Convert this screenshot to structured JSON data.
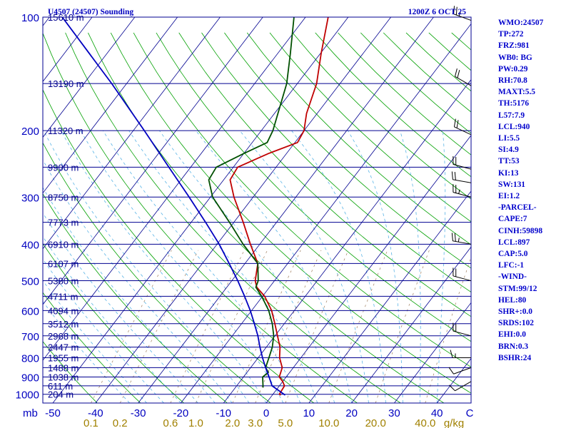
{
  "chart_data": {
    "type": "skew-t-log-p sounding",
    "title_left": "U4507 (24507) Sounding",
    "title_right": "1200Z  6 OCT 25",
    "pressure_axis": {
      "unit_label": "mb",
      "range_mb": [
        100,
        1000
      ],
      "ticks": [
        {
          "p": 100,
          "label": "100"
        },
        {
          "p": 200,
          "label": "200"
        },
        {
          "p": 300,
          "label": "300"
        },
        {
          "p": 400,
          "label": "400"
        },
        {
          "p": 500,
          "label": "500"
        },
        {
          "p": 600,
          "label": "600"
        },
        {
          "p": 700,
          "label": "700"
        },
        {
          "p": 800,
          "label": "800"
        },
        {
          "p": 900,
          "label": "900"
        },
        {
          "p": 1000,
          "label": "1000"
        }
      ]
    },
    "temperature_axis": {
      "unit_label": "C",
      "range_c": [
        -50,
        50
      ],
      "ticks": [
        {
          "t": -50,
          "label": "-50"
        },
        {
          "t": -40,
          "label": "-40"
        },
        {
          "t": -30,
          "label": "-30"
        },
        {
          "t": -20,
          "label": "-20"
        },
        {
          "t": -10,
          "label": "-10"
        },
        {
          "t": 0,
          "label": "0"
        },
        {
          "t": 10,
          "label": "10"
        },
        {
          "t": 20,
          "label": "20"
        },
        {
          "t": 30,
          "label": "30"
        },
        {
          "t": 40,
          "label": "40"
        }
      ]
    },
    "mixing_ratio_axis": {
      "unit_label": "g/kg",
      "labels": [
        "0.1",
        "0.2",
        "0.6",
        "1.0",
        "2.0",
        "3.0",
        "5.0",
        "10.0",
        "20.0",
        "40.0"
      ],
      "values": [
        0.1,
        0.2,
        0.6,
        1.0,
        2.0,
        3.0,
        5.0,
        10.0,
        20.0,
        40.0
      ]
    },
    "height_labels": [
      {
        "p": 100,
        "label": "15610 m"
      },
      {
        "p": 150,
        "label": "13190 m"
      },
      {
        "p": 200,
        "label": "11320 m"
      },
      {
        "p": 250,
        "label": "9900 m"
      },
      {
        "p": 300,
        "label": "8750 m"
      },
      {
        "p": 350,
        "label": "7773 m"
      },
      {
        "p": 400,
        "label": "6910 m"
      },
      {
        "p": 450,
        "label": "6107 m"
      },
      {
        "p": 500,
        "label": "5380 m"
      },
      {
        "p": 550,
        "label": "4711 m"
      },
      {
        "p": 600,
        "label": "4094 m"
      },
      {
        "p": 650,
        "label": "3512 m"
      },
      {
        "p": 700,
        "label": "2968 m"
      },
      {
        "p": 750,
        "label": "2447 m"
      },
      {
        "p": 800,
        "label": "1955 m"
      },
      {
        "p": 850,
        "label": "1488 m"
      },
      {
        "p": 900,
        "label": "1038 m"
      },
      {
        "p": 950,
        "label": "611 m"
      },
      {
        "p": 1000,
        "label": "204 m"
      }
    ],
    "series": [
      {
        "name": "temperature",
        "color": "#c00000",
        "points": [
          {
            "p": 1005,
            "t": 2.0
          },
          {
            "p": 1000,
            "t": 1.5
          },
          {
            "p": 950,
            "t": 1.2
          },
          {
            "p": 925,
            "t": 0.0
          },
          {
            "p": 900,
            "t": -1.6
          },
          {
            "p": 850,
            "t": -2.6
          },
          {
            "p": 800,
            "t": -5.0
          },
          {
            "p": 750,
            "t": -6.8
          },
          {
            "p": 700,
            "t": -9.4
          },
          {
            "p": 650,
            "t": -12.2
          },
          {
            "p": 600,
            "t": -15.3
          },
          {
            "p": 550,
            "t": -19.5
          },
          {
            "p": 520,
            "t": -23.0
          },
          {
            "p": 500,
            "t": -24.5
          },
          {
            "p": 450,
            "t": -27.0
          },
          {
            "p": 400,
            "t": -32.2
          },
          {
            "p": 350,
            "t": -37.8
          },
          {
            "p": 300,
            "t": -44.5
          },
          {
            "p": 270,
            "t": -48.5
          },
          {
            "p": 250,
            "t": -49.0
          },
          {
            "p": 230,
            "t": -44.2
          },
          {
            "p": 215,
            "t": -39.4
          },
          {
            "p": 200,
            "t": -40.0
          },
          {
            "p": 180,
            "t": -42.5
          },
          {
            "p": 150,
            "t": -45.5
          },
          {
            "p": 125,
            "t": -49.8
          },
          {
            "p": 100,
            "t": -54.7
          }
        ]
      },
      {
        "name": "dewpoint",
        "color": "#005000",
        "points": [
          {
            "p": 960,
            "t": -3.5
          },
          {
            "p": 900,
            "t": -5.5
          },
          {
            "p": 875,
            "t": -5.0
          },
          {
            "p": 850,
            "t": -6.5
          },
          {
            "p": 800,
            "t": -7.5
          },
          {
            "p": 750,
            "t": -8.6
          },
          {
            "p": 700,
            "t": -10.3
          },
          {
            "p": 650,
            "t": -12.8
          },
          {
            "p": 600,
            "t": -16.0
          },
          {
            "p": 550,
            "t": -20.2
          },
          {
            "p": 520,
            "t": -23.2
          },
          {
            "p": 500,
            "t": -23.8
          },
          {
            "p": 450,
            "t": -27.0
          },
          {
            "p": 400,
            "t": -33.9
          },
          {
            "p": 350,
            "t": -41.0
          },
          {
            "p": 300,
            "t": -49.5
          },
          {
            "p": 270,
            "t": -53.5
          },
          {
            "p": 250,
            "t": -54.0
          },
          {
            "p": 230,
            "t": -50.0
          },
          {
            "p": 215,
            "t": -46.5
          },
          {
            "p": 200,
            "t": -47.3
          },
          {
            "p": 150,
            "t": -52.5
          },
          {
            "p": 125,
            "t": -57.0
          },
          {
            "p": 100,
            "t": -62.7
          }
        ]
      },
      {
        "name": "parcel",
        "color": "#0000c0",
        "points": [
          {
            "p": 1005,
            "t": 3.0
          },
          {
            "p": 950,
            "t": -1.7
          },
          {
            "p": 900,
            "t": -4.0
          },
          {
            "p": 850,
            "t": -6.5
          },
          {
            "p": 800,
            "t": -9.0
          },
          {
            "p": 750,
            "t": -11.5
          },
          {
            "p": 700,
            "t": -14.0
          },
          {
            "p": 650,
            "t": -17.0
          },
          {
            "p": 600,
            "t": -20.3
          },
          {
            "p": 550,
            "t": -24.2
          },
          {
            "p": 500,
            "t": -28.6
          },
          {
            "p": 450,
            "t": -33.7
          },
          {
            "p": 400,
            "t": -39.5
          },
          {
            "p": 350,
            "t": -46.6
          },
          {
            "p": 300,
            "t": -55.0
          },
          {
            "p": 250,
            "t": -65.1
          },
          {
            "p": 200,
            "t": -77.4
          },
          {
            "p": 150,
            "t": -93.5
          },
          {
            "p": 100,
            "t": -117.0
          }
        ]
      }
    ],
    "wind_barbs": [
      {
        "p": 102,
        "direction_deg": 290,
        "speed_kt": 25
      },
      {
        "p": 152,
        "direction_deg": 300,
        "speed_kt": 20
      },
      {
        "p": 205,
        "direction_deg": 295,
        "speed_kt": 20
      },
      {
        "p": 253,
        "direction_deg": 285,
        "speed_kt": 20
      },
      {
        "p": 275,
        "direction_deg": 280,
        "speed_kt": 20
      },
      {
        "p": 300,
        "direction_deg": 285,
        "speed_kt": 25
      },
      {
        "p": 400,
        "direction_deg": 280,
        "speed_kt": 25
      },
      {
        "p": 500,
        "direction_deg": 285,
        "speed_kt": 20
      },
      {
        "p": 700,
        "direction_deg": 285,
        "speed_kt": 20
      },
      {
        "p": 800,
        "direction_deg": 270,
        "speed_kt": 15
      },
      {
        "p": 850,
        "direction_deg": 250,
        "speed_kt": 10
      },
      {
        "p": 925,
        "direction_deg": 240,
        "speed_kt": 10
      }
    ],
    "indices": [
      {
        "label": "WMO:24507"
      },
      {
        "label": "TP:272"
      },
      {
        "label": "FRZ:981"
      },
      {
        "label": "WB0: BG"
      },
      {
        "label": "PW:0.29"
      },
      {
        "label": "RH:70.8"
      },
      {
        "label": "MAXT:5.5"
      },
      {
        "label": "TH:5176"
      },
      {
        "label": "L57:7.9"
      },
      {
        "label": "LCL:940"
      },
      {
        "label": "LI:5.5"
      },
      {
        "label": "SI:4.9"
      },
      {
        "label": "TT:53"
      },
      {
        "label": "KI:13"
      },
      {
        "label": "SW:131"
      },
      {
        "label": "EI:1.2"
      },
      {
        "label": "-PARCEL-"
      },
      {
        "label": "CAPE:7"
      },
      {
        "label": "CINH:59898"
      },
      {
        "label": "LCL:897"
      },
      {
        "label": "CAP:5.0"
      },
      {
        "label": "LFC:-1"
      },
      {
        "label": "-WIND-"
      },
      {
        "label": "STM:99/12"
      },
      {
        "label": "HEL:80"
      },
      {
        "label": "SHR+:0.0"
      },
      {
        "label": "SRDS:102"
      },
      {
        "label": "EHI:0.0"
      },
      {
        "label": "BRN:0.3"
      },
      {
        "label": "BSHR:24"
      }
    ],
    "colors": {
      "isobar": "#000090",
      "isotherm": "#000090",
      "dry_adiabat": "#00a000",
      "moist_adiabat": "#5ab4e6",
      "mixing_ratio": "#a08060",
      "text_blue": "#0000c0",
      "text_tan": "#a08000"
    }
  }
}
